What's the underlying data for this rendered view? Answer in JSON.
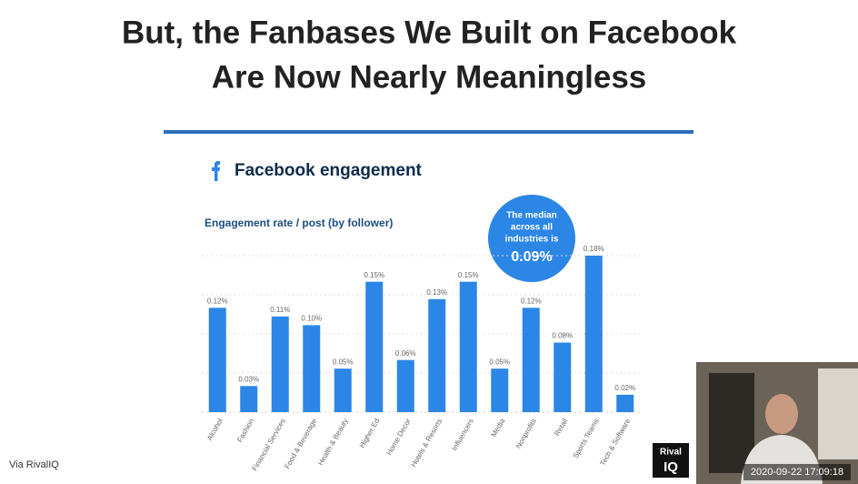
{
  "slide": {
    "title": [
      "But, the Fanbases We Built on Facebook",
      "Are Now Nearly Meaningless"
    ],
    "source": "Via RivalIQ",
    "logo": [
      "Rival",
      "IQ"
    ],
    "timestamp": "2020-09-22  17:09:18"
  },
  "chart_data": {
    "type": "bar",
    "title": "Facebook engagement",
    "subtitle": "Engagement rate / post (by follower)",
    "categories": [
      "Alcohol",
      "Fashion",
      "Financial Services",
      "Food & Beverage",
      "Health & Beauty",
      "Higher Ed",
      "Home Decor",
      "Hotels & Resorts",
      "Influencers",
      "Media",
      "Nonprofits",
      "Retail",
      "Sports Teams",
      "Tech & Software"
    ],
    "values": [
      0.12,
      0.03,
      0.11,
      0.1,
      0.05,
      0.15,
      0.06,
      0.13,
      0.15,
      0.05,
      0.12,
      0.08,
      0.18,
      0.02
    ],
    "value_labels": [
      "0.12%",
      "0.03%",
      "0.11%",
      "0.10%",
      "0.05%",
      "0.15%",
      "0.06%",
      "0.13%",
      "0.15%",
      "0.05%",
      "0.12%",
      "0.08%",
      "0.18%",
      "0.02%"
    ],
    "color": "#2b86e6",
    "ylim": [
      0,
      0.18
    ],
    "grid": true,
    "annotation": {
      "lines": [
        "The median",
        "across all",
        "industries is"
      ],
      "value": "0.09%"
    }
  }
}
